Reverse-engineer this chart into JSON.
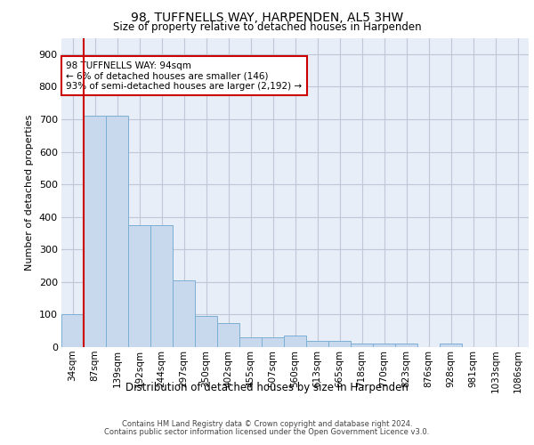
{
  "title": "98, TUFFNELLS WAY, HARPENDEN, AL5 3HW",
  "subtitle": "Size of property relative to detached houses in Harpenden",
  "xlabel": "Distribution of detached houses by size in Harpenden",
  "ylabel": "Number of detached properties",
  "bar_color": "#c9d9ed",
  "bar_edge_color": "#7bafd4",
  "grid_color": "#c0c8d8",
  "background_color": "#e8eef8",
  "vline_color": "#cc0000",
  "annotation_text": "98 TUFFNELLS WAY: 94sqm\n← 6% of detached houses are smaller (146)\n93% of semi-detached houses are larger (2,192) →",
  "annotation_box_color": "#ffffff",
  "annotation_border_color": "#cc0000",
  "categories": [
    "34sqm",
    "87sqm",
    "139sqm",
    "192sqm",
    "244sqm",
    "297sqm",
    "350sqm",
    "402sqm",
    "455sqm",
    "507sqm",
    "560sqm",
    "613sqm",
    "665sqm",
    "718sqm",
    "770sqm",
    "823sqm",
    "876sqm",
    "928sqm",
    "981sqm",
    "1033sqm",
    "1086sqm"
  ],
  "values": [
    100,
    710,
    710,
    375,
    375,
    205,
    95,
    75,
    30,
    30,
    35,
    20,
    20,
    10,
    10,
    10,
    0,
    10,
    0,
    0,
    0
  ],
  "ylim": [
    0,
    950
  ],
  "yticks": [
    0,
    100,
    200,
    300,
    400,
    500,
    600,
    700,
    800,
    900
  ],
  "footer_line1": "Contains HM Land Registry data © Crown copyright and database right 2024.",
  "footer_line2": "Contains public sector information licensed under the Open Government Licence v3.0."
}
